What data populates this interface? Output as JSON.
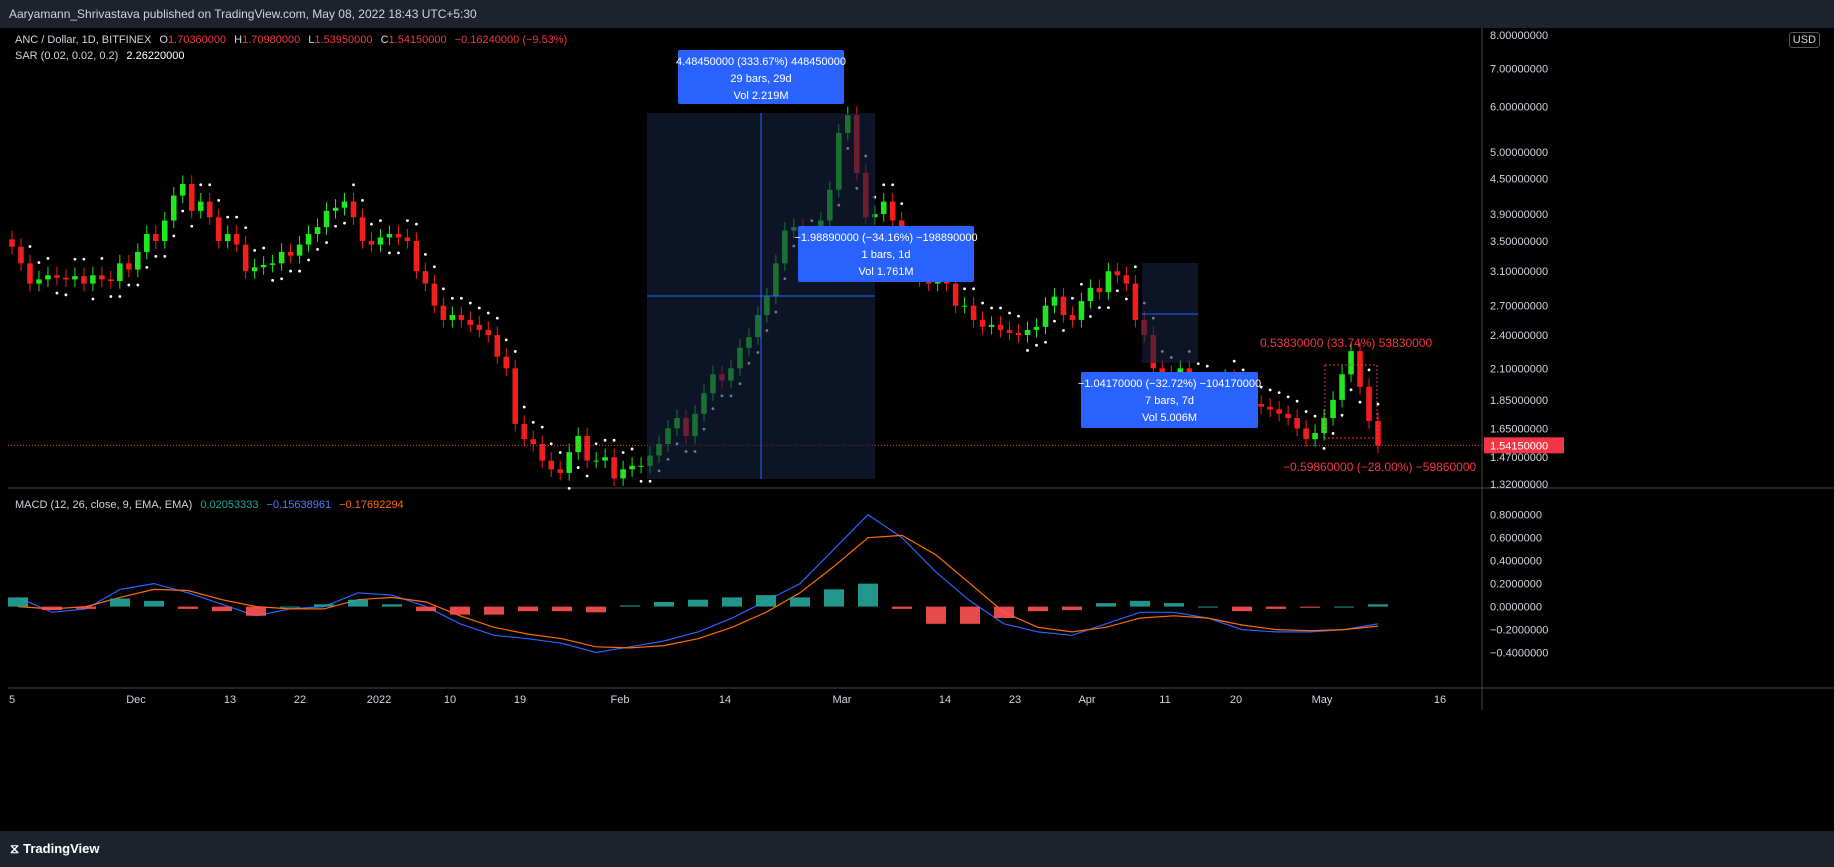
{
  "publisher": "Aaryamann_Shrivastava published on TradingView.com, May 08, 2022 18:43 UTC+5:30",
  "currency": "USD",
  "symbol_line": {
    "title": "ANC / Dollar, 1D, BITFINEX",
    "o_label": "O",
    "o": "1.70360000",
    "h_label": "H",
    "h": "1.70980000",
    "l_label": "L",
    "l": "1.53950000",
    "c_label": "C",
    "c": "1.54150000",
    "change": "−0.16240000 (−9.53%)"
  },
  "sar_line": {
    "label": "SAR (0.02, 0.02, 0.2)",
    "value": "2.26220000"
  },
  "macd_line": {
    "label": "MACD (12, 26, close, 9, EMA, EMA)",
    "hist": "0.02053333",
    "macd": "−0.15638961",
    "signal": "−0.17692294"
  },
  "colors": {
    "up": "#22e61f",
    "down": "#f21d1d",
    "macd": "#2962ff",
    "signal": "#ff6d00",
    "sar": "#ffffff",
    "measure": "#2962ff",
    "box": "#14223f"
  },
  "measure_boxes": [
    {
      "lines": [
        "4.48450000 (333.67%) 448450000",
        "29 bars, 29d",
        "Vol 2.219M"
      ]
    },
    {
      "lines": [
        "−1.98890000 (−34.16%) −198890000",
        "1 bars, 1d",
        "Vol 1.761M"
      ]
    },
    {
      "lines": [
        "−1.04170000 (−32.72%) −104170000",
        "7 bars, 7d",
        "Vol 5.006M"
      ]
    }
  ],
  "red_measures": {
    "upper": "0.53830000 (33.74%) 53830000",
    "lower": "−0.59860000 (−28.00%) −59860000"
  },
  "last_price_label": "1.54150000",
  "tradingview": "TradingView",
  "chart_data": [
    {
      "type": "candlestick",
      "title": "ANC / Dollar, 1D, BITFINEX",
      "price_scale": "log",
      "y_ticks": [
        "8.00000000",
        "7.00000000",
        "6.00000000",
        "5.00000000",
        "4.50000000",
        "3.90000000",
        "3.50000000",
        "3.10000000",
        "2.70000000",
        "2.40000000",
        "2.10000000",
        "1.85000000",
        "1.65000000",
        "1.47000000",
        "1.32000000"
      ],
      "x_ticks": [
        "5",
        "Dec",
        "13",
        "22",
        "2022",
        "10",
        "19",
        "Feb",
        "14",
        "Mar",
        "14",
        "23",
        "Apr",
        "11",
        "20",
        "May",
        "16"
      ],
      "close_values": [
        3.42,
        3.2,
        2.95,
        3.0,
        3.05,
        3.02,
        3.0,
        3.04,
        2.95,
        3.05,
        3.0,
        2.98,
        3.2,
        3.12,
        3.35,
        3.6,
        3.5,
        3.8,
        4.2,
        4.4,
        3.95,
        4.1,
        3.85,
        3.5,
        3.6,
        3.45,
        3.1,
        3.15,
        3.18,
        3.2,
        3.35,
        3.3,
        3.45,
        3.6,
        3.7,
        3.95,
        4.0,
        4.1,
        3.85,
        3.5,
        3.45,
        3.55,
        3.6,
        3.55,
        3.5,
        3.1,
        2.95,
        2.7,
        2.55,
        2.6,
        2.55,
        2.5,
        2.45,
        2.4,
        2.2,
        2.1,
        1.68,
        1.58,
        1.55,
        1.45,
        1.4,
        1.38,
        1.5,
        1.6,
        1.45,
        1.45,
        1.47,
        1.35,
        1.4,
        1.42,
        1.42,
        1.48,
        1.55,
        1.65,
        1.72,
        1.6,
        1.75,
        1.9,
        2.05,
        2.0,
        2.1,
        2.28,
        2.38,
        2.6,
        2.8,
        3.2,
        3.65,
        3.7,
        3.55,
        3.5,
        3.8,
        4.3,
        5.4,
        5.8,
        4.6,
        3.85,
        3.9,
        4.1,
        3.8,
        3.4,
        3.1,
        3.0,
        2.95,
        3.05,
        2.95,
        2.7,
        2.7,
        2.55,
        2.48,
        2.5,
        2.45,
        2.42,
        2.4,
        2.45,
        2.48,
        2.7,
        2.8,
        2.6,
        2.55,
        2.75,
        2.9,
        2.85,
        3.1,
        3.05,
        2.95,
        2.55,
        2.4,
        2.1,
        2.05,
        2.02,
        2.1,
        2.0,
        1.95,
        1.98,
        2.0,
        2.02,
        1.95,
        1.88,
        1.82,
        1.8,
        1.78,
        1.75,
        1.72,
        1.65,
        1.58,
        1.62,
        1.72,
        1.85,
        2.05,
        2.25,
        1.95,
        1.7,
        1.54
      ]
    },
    {
      "type": "line",
      "title": "MACD (12, 26, close, 9, EMA, EMA)",
      "y_ticks": [
        "0.8000000",
        "0.6000000",
        "0.4000000",
        "0.2000000",
        "0.0000000",
        "−0.2000000",
        "−0.4000000"
      ],
      "ylim": [
        -0.5,
        0.85
      ],
      "series": [
        {
          "name": "MACD",
          "values": [
            0.08,
            -0.05,
            -0.02,
            0.15,
            0.2,
            0.12,
            0.02,
            -0.08,
            -0.02,
            0.0,
            0.12,
            0.1,
            0.0,
            -0.15,
            -0.25,
            -0.28,
            -0.32,
            -0.4,
            -0.35,
            -0.3,
            -0.22,
            -0.1,
            0.05,
            0.2,
            0.5,
            0.8,
            0.6,
            0.3,
            0.05,
            -0.15,
            -0.22,
            -0.25,
            -0.15,
            -0.05,
            -0.05,
            -0.1,
            -0.2,
            -0.22,
            -0.22,
            -0.2,
            -0.15
          ]
        },
        {
          "name": "Signal",
          "values": [
            0.0,
            -0.02,
            0.0,
            0.08,
            0.15,
            0.14,
            0.06,
            0.0,
            -0.02,
            -0.02,
            0.06,
            0.08,
            0.04,
            -0.08,
            -0.18,
            -0.24,
            -0.28,
            -0.35,
            -0.36,
            -0.34,
            -0.28,
            -0.18,
            -0.05,
            0.12,
            0.35,
            0.6,
            0.62,
            0.45,
            0.2,
            -0.05,
            -0.18,
            -0.22,
            -0.18,
            -0.1,
            -0.08,
            -0.1,
            -0.16,
            -0.2,
            -0.21,
            -0.2,
            -0.17
          ]
        }
      ]
    }
  ]
}
